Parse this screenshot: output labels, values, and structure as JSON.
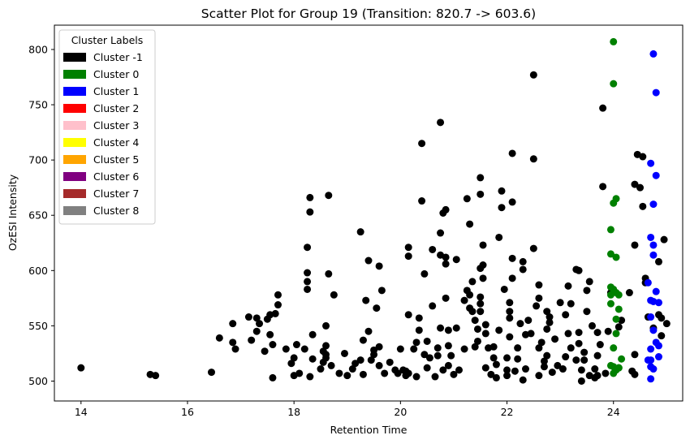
{
  "chart_data": {
    "type": "scatter",
    "title": "Scatter Plot for Group 19 (Transition: 820.7 -> 603.6)",
    "xlabel": "Retention Time",
    "ylabel": "OzESI Intensity",
    "xlim": [
      13.5,
      25.3
    ],
    "ylim": [
      482,
      822
    ],
    "xticks": [
      14,
      16,
      18,
      20,
      22,
      24
    ],
    "yticks": [
      500,
      550,
      600,
      650,
      700,
      750,
      800
    ],
    "grid": false,
    "legend": {
      "title": "Cluster Labels",
      "placement": "top-left",
      "entries": [
        {
          "label": "Cluster -1",
          "color": "#000000"
        },
        {
          "label": "Cluster 0",
          "color": "#008000"
        },
        {
          "label": "Cluster 1",
          "color": "#0000ff"
        },
        {
          "label": "Cluster 2",
          "color": "#ff0000"
        },
        {
          "label": "Cluster 3",
          "color": "#ffc0cb"
        },
        {
          "label": "Cluster 4",
          "color": "#ffff00"
        },
        {
          "label": "Cluster 5",
          "color": "#ffa500"
        },
        {
          "label": "Cluster 6",
          "color": "#800080"
        },
        {
          "label": "Cluster 7",
          "color": "#a52a2a"
        },
        {
          "label": "Cluster 8",
          "color": "#808080"
        }
      ]
    },
    "series": [
      {
        "name": "Cluster -1",
        "color": "#000000",
        "points": [
          [
            14.0,
            512
          ],
          [
            15.3,
            506
          ],
          [
            15.4,
            505
          ],
          [
            16.45,
            508
          ],
          [
            16.6,
            539
          ],
          [
            16.85,
            535
          ],
          [
            16.85,
            552
          ],
          [
            16.9,
            529
          ],
          [
            17.15,
            558
          ],
          [
            17.2,
            537
          ],
          [
            17.3,
            545
          ],
          [
            17.3,
            557
          ],
          [
            17.35,
            552
          ],
          [
            17.45,
            527
          ],
          [
            17.5,
            556
          ],
          [
            17.55,
            560
          ],
          [
            17.55,
            542
          ],
          [
            17.6,
            533
          ],
          [
            17.6,
            503
          ],
          [
            17.65,
            561
          ],
          [
            17.7,
            569
          ],
          [
            17.7,
            578
          ],
          [
            17.85,
            529
          ],
          [
            17.95,
            516
          ],
          [
            18.0,
            521
          ],
          [
            18.0,
            505
          ],
          [
            18.05,
            533
          ],
          [
            18.1,
            507
          ],
          [
            18.2,
            529
          ],
          [
            18.25,
            590
          ],
          [
            18.25,
            583
          ],
          [
            18.25,
            598
          ],
          [
            18.25,
            621
          ],
          [
            18.3,
            653
          ],
          [
            18.3,
            666
          ],
          [
            18.3,
            504
          ],
          [
            18.35,
            520
          ],
          [
            18.35,
            542
          ],
          [
            18.5,
            511
          ],
          [
            18.55,
            527
          ],
          [
            18.55,
            517
          ],
          [
            18.6,
            521
          ],
          [
            18.6,
            524
          ],
          [
            18.6,
            532
          ],
          [
            18.6,
            550
          ],
          [
            18.65,
            597
          ],
          [
            18.65,
            668
          ],
          [
            18.7,
            514
          ],
          [
            18.75,
            578
          ],
          [
            18.85,
            507
          ],
          [
            18.95,
            525
          ],
          [
            19.0,
            505
          ],
          [
            19.1,
            511
          ],
          [
            19.15,
            516
          ],
          [
            19.25,
            519
          ],
          [
            19.25,
            635
          ],
          [
            19.3,
            506
          ],
          [
            19.3,
            537
          ],
          [
            19.35,
            573
          ],
          [
            19.4,
            609
          ],
          [
            19.4,
            545
          ],
          [
            19.45,
            519
          ],
          [
            19.5,
            528
          ],
          [
            19.5,
            524
          ],
          [
            19.55,
            566
          ],
          [
            19.6,
            514
          ],
          [
            19.6,
            531
          ],
          [
            19.6,
            604
          ],
          [
            19.65,
            582
          ],
          [
            19.7,
            507
          ],
          [
            19.8,
            517
          ],
          [
            19.9,
            510
          ],
          [
            19.95,
            507
          ],
          [
            20.0,
            529
          ],
          [
            20.05,
            510
          ],
          [
            20.1,
            509
          ],
          [
            20.1,
            505
          ],
          [
            20.15,
            507
          ],
          [
            20.15,
            560
          ],
          [
            20.15,
            621
          ],
          [
            20.15,
            613
          ],
          [
            20.25,
            529
          ],
          [
            20.3,
            535
          ],
          [
            20.3,
            504
          ],
          [
            20.35,
            546
          ],
          [
            20.35,
            557
          ],
          [
            20.4,
            663
          ],
          [
            20.4,
            715
          ],
          [
            20.45,
            524
          ],
          [
            20.45,
            597
          ],
          [
            20.5,
            512
          ],
          [
            20.5,
            536
          ],
          [
            20.55,
            521
          ],
          [
            20.6,
            568
          ],
          [
            20.6,
            619
          ],
          [
            20.65,
            504
          ],
          [
            20.7,
            523
          ],
          [
            20.7,
            530
          ],
          [
            20.75,
            548
          ],
          [
            20.75,
            614
          ],
          [
            20.75,
            634
          ],
          [
            20.75,
            734
          ],
          [
            20.8,
            510
          ],
          [
            20.8,
            652
          ],
          [
            20.85,
            655
          ],
          [
            20.85,
            612
          ],
          [
            20.85,
            575
          ],
          [
            20.85,
            606
          ],
          [
            20.9,
            546
          ],
          [
            20.9,
            514
          ],
          [
            20.9,
            532
          ],
          [
            20.95,
            523
          ],
          [
            21.0,
            506
          ],
          [
            21.05,
            610
          ],
          [
            21.05,
            548
          ],
          [
            21.1,
            510
          ],
          [
            21.2,
            573
          ],
          [
            21.2,
            529
          ],
          [
            21.25,
            582
          ],
          [
            21.25,
            665
          ],
          [
            21.3,
            566
          ],
          [
            21.3,
            578
          ],
          [
            21.3,
            642
          ],
          [
            21.35,
            563
          ],
          [
            21.35,
            590
          ],
          [
            21.4,
            555
          ],
          [
            21.4,
            531
          ],
          [
            21.45,
            547
          ],
          [
            21.45,
            536
          ],
          [
            21.5,
            563
          ],
          [
            21.5,
            602
          ],
          [
            21.5,
            576
          ],
          [
            21.5,
            570
          ],
          [
            21.55,
            623
          ],
          [
            21.55,
            593
          ],
          [
            21.55,
            605
          ],
          [
            21.5,
            669
          ],
          [
            21.5,
            684
          ],
          [
            21.6,
            543
          ],
          [
            21.6,
            551
          ],
          [
            21.6,
            512
          ],
          [
            21.65,
            530
          ],
          [
            21.7,
            506
          ],
          [
            21.75,
            531
          ],
          [
            21.75,
            521
          ],
          [
            21.8,
            503
          ],
          [
            21.8,
            515
          ],
          [
            21.85,
            546
          ],
          [
            21.85,
            630
          ],
          [
            21.9,
            657
          ],
          [
            21.9,
            672
          ],
          [
            21.95,
            583
          ],
          [
            22.0,
            510
          ],
          [
            22.0,
            521
          ],
          [
            22.0,
            505
          ],
          [
            22.05,
            571
          ],
          [
            22.05,
            563
          ],
          [
            22.05,
            557
          ],
          [
            22.05,
            540
          ],
          [
            22.1,
            593
          ],
          [
            22.1,
            611
          ],
          [
            22.1,
            662
          ],
          [
            22.1,
            706
          ],
          [
            22.15,
            509
          ],
          [
            22.2,
            530
          ],
          [
            22.2,
            520
          ],
          [
            22.25,
            552
          ],
          [
            22.3,
            601
          ],
          [
            22.3,
            608
          ],
          [
            22.3,
            501
          ],
          [
            22.35,
            542
          ],
          [
            22.35,
            511
          ],
          [
            22.4,
            555
          ],
          [
            22.45,
            543
          ],
          [
            22.5,
            777
          ],
          [
            22.5,
            701
          ],
          [
            22.5,
            620
          ],
          [
            22.55,
            568
          ],
          [
            22.6,
            505
          ],
          [
            22.6,
            530
          ],
          [
            22.6,
            587
          ],
          [
            22.6,
            575
          ],
          [
            22.65,
            535
          ],
          [
            22.7,
            513
          ],
          [
            22.7,
            518
          ],
          [
            22.75,
            547
          ],
          [
            22.75,
            563
          ],
          [
            22.75,
            523
          ],
          [
            22.8,
            553
          ],
          [
            22.8,
            558
          ],
          [
            22.85,
            508
          ],
          [
            22.9,
            538
          ],
          [
            22.95,
            514
          ],
          [
            23.0,
            571
          ],
          [
            23.05,
            511
          ],
          [
            23.1,
            522
          ],
          [
            23.1,
            560
          ],
          [
            23.15,
            543
          ],
          [
            23.15,
            586
          ],
          [
            23.2,
            570
          ],
          [
            23.2,
            530
          ],
          [
            23.3,
            519
          ],
          [
            23.3,
            601
          ],
          [
            23.35,
            534
          ],
          [
            23.35,
            544
          ],
          [
            23.35,
            600
          ],
          [
            23.4,
            510
          ],
          [
            23.4,
            500
          ],
          [
            23.45,
            519
          ],
          [
            23.45,
            526
          ],
          [
            23.5,
            563
          ],
          [
            23.5,
            582
          ],
          [
            23.55,
            590
          ],
          [
            23.55,
            505
          ],
          [
            23.6,
            550
          ],
          [
            23.65,
            511
          ],
          [
            23.65,
            503
          ],
          [
            23.7,
            523
          ],
          [
            23.7,
            544
          ],
          [
            23.7,
            505
          ],
          [
            23.75,
            533
          ],
          [
            23.8,
            747
          ],
          [
            23.8,
            676
          ],
          [
            23.85,
            507
          ],
          [
            24.3,
            580
          ],
          [
            24.35,
            509
          ],
          [
            24.4,
            506
          ],
          [
            24.4,
            524
          ],
          [
            24.4,
            623
          ],
          [
            24.4,
            678
          ],
          [
            24.45,
            705
          ],
          [
            24.5,
            675
          ],
          [
            24.55,
            703
          ],
          [
            24.55,
            658
          ],
          [
            24.6,
            593
          ],
          [
            24.6,
            589
          ],
          [
            24.65,
            558
          ],
          [
            24.75,
            548
          ],
          [
            24.85,
            560
          ],
          [
            24.85,
            608
          ],
          [
            24.9,
            541
          ],
          [
            24.9,
            557
          ],
          [
            24.95,
            628
          ],
          [
            25.0,
            552
          ],
          [
            24.1,
            549
          ],
          [
            24.15,
            555
          ],
          [
            23.9,
            545
          ],
          [
            23.95,
            580
          ]
        ]
      },
      {
        "name": "Cluster 0",
        "color": "#008000",
        "points": [
          [
            24.0,
            807
          ],
          [
            24.0,
            769
          ],
          [
            24.05,
            665
          ],
          [
            24.0,
            661
          ],
          [
            23.95,
            637
          ],
          [
            23.95,
            615
          ],
          [
            24.05,
            612
          ],
          [
            23.95,
            585
          ],
          [
            23.95,
            578
          ],
          [
            24.0,
            583
          ],
          [
            24.05,
            580
          ],
          [
            24.1,
            578
          ],
          [
            23.95,
            570
          ],
          [
            24.1,
            565
          ],
          [
            24.05,
            556
          ],
          [
            24.0,
            530
          ],
          [
            24.05,
            543
          ],
          [
            24.15,
            520
          ],
          [
            23.95,
            514
          ],
          [
            24.0,
            513
          ],
          [
            24.05,
            510
          ],
          [
            24.1,
            512
          ],
          [
            24.0,
            507
          ],
          [
            24.1,
            512
          ]
        ]
      },
      {
        "name": "Cluster 1",
        "color": "#0000ff",
        "points": [
          [
            24.75,
            796
          ],
          [
            24.8,
            761
          ],
          [
            24.7,
            697
          ],
          [
            24.8,
            686
          ],
          [
            24.75,
            660
          ],
          [
            24.7,
            630
          ],
          [
            24.75,
            623
          ],
          [
            24.75,
            614
          ],
          [
            24.65,
            589
          ],
          [
            24.8,
            581
          ],
          [
            24.7,
            573
          ],
          [
            24.75,
            572
          ],
          [
            24.85,
            571
          ],
          [
            24.7,
            558
          ],
          [
            24.75,
            546
          ],
          [
            24.85,
            532
          ],
          [
            24.7,
            529
          ],
          [
            24.8,
            535
          ],
          [
            24.7,
            519
          ],
          [
            24.65,
            519
          ],
          [
            24.85,
            522
          ],
          [
            24.7,
            513
          ],
          [
            24.75,
            511
          ],
          [
            24.7,
            502
          ]
        ]
      }
    ]
  }
}
